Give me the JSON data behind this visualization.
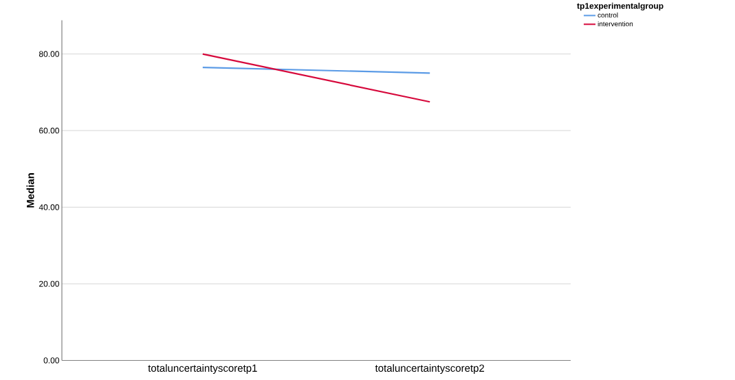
{
  "chart_data": {
    "type": "line",
    "ylabel": "Median",
    "legend_title": "tp1experimentalgroup",
    "categories": [
      "totaluncertaintyscoretp1",
      "totaluncertaintyscoretp2"
    ],
    "series": [
      {
        "name": "control",
        "color": "#5b9be6",
        "values": [
          76.5,
          75.0
        ]
      },
      {
        "name": "intervention",
        "color": "#d6083b",
        "values": [
          80.0,
          67.5
        ]
      }
    ],
    "ylim": [
      0,
      88.8
    ],
    "yticks": [
      {
        "value": 0,
        "label": "0.00"
      },
      {
        "value": 20,
        "label": "20.00"
      },
      {
        "value": 40,
        "label": "40.00"
      },
      {
        "value": 60,
        "label": "60.00"
      },
      {
        "value": 80,
        "label": "80.00"
      }
    ],
    "grid": "y",
    "legend": "top right",
    "marker": "none",
    "line_style": "solid"
  }
}
